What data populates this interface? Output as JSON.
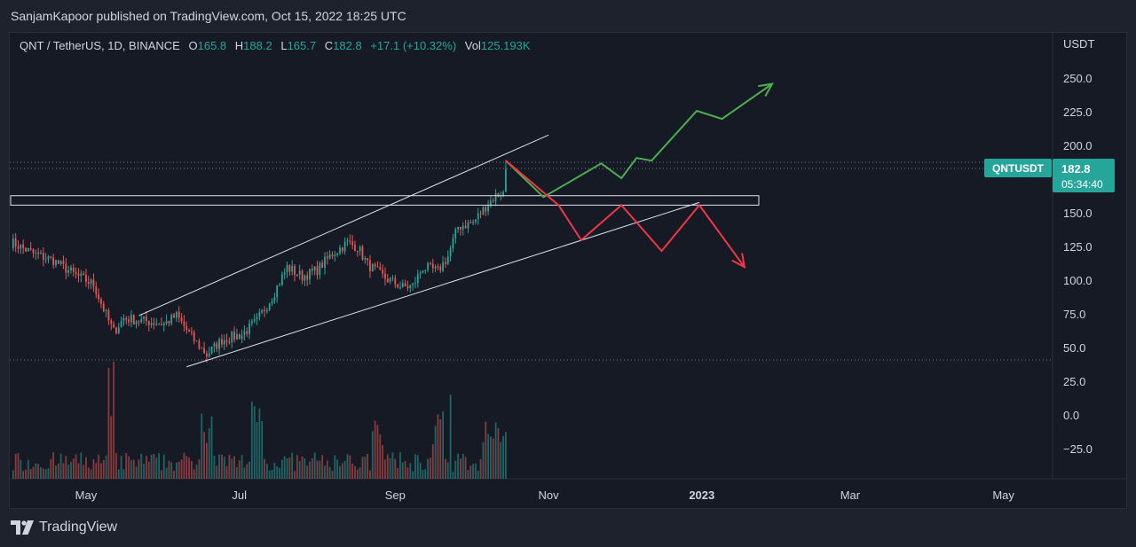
{
  "header": {
    "published": "SanjamKapoor published on TradingView.com, Oct 15, 2022 18:25 UTC"
  },
  "legend": {
    "symbol": "QNT / TetherUS, 1D, BINANCE",
    "open_label": "O",
    "open": "165.8",
    "high_label": "H",
    "high": "188.2",
    "low_label": "L",
    "low": "165.7",
    "close_label": "C",
    "close": "182.8",
    "change": "+17.1 (+10.32%)",
    "vol_label": "Vol",
    "vol": "125.193K"
  },
  "price_axis": {
    "unit": "USDT",
    "ticks": [
      "250.0",
      "225.0",
      "200.0",
      "150.0",
      "125.0",
      "100.0",
      "75.0",
      "50.0",
      "25.0",
      "0.0",
      "−25.0"
    ]
  },
  "price_tag": {
    "ticker": "QNTUSDT",
    "price": "182.8",
    "countdown": "05:34:40"
  },
  "time_axis": {
    "ticks": [
      "May",
      "Jul",
      "Sep",
      "Nov",
      "2023",
      "Mar",
      "May"
    ]
  },
  "footer": {
    "brand": "TradingView"
  },
  "colors": {
    "up": "#26a69a",
    "down": "#ef5350",
    "bull_path": "#4caf50",
    "bear_path": "#f23645",
    "trendline": "#e0e3eb",
    "background": "#161a25"
  },
  "chart_data": {
    "type": "candlestick",
    "symbol": "QNTUSDT",
    "interval": "1D",
    "ylim": [
      -40,
      265
    ],
    "last_price": 182.8,
    "price_series": [
      {
        "date": "2022-04-02",
        "close": 128
      },
      {
        "date": "2022-04-10",
        "close": 120
      },
      {
        "date": "2022-04-18",
        "close": 115
      },
      {
        "date": "2022-04-26",
        "close": 105
      },
      {
        "date": "2022-05-04",
        "close": 97
      },
      {
        "date": "2022-05-10",
        "close": 70
      },
      {
        "date": "2022-05-12",
        "close": 62
      },
      {
        "date": "2022-05-16",
        "close": 72
      },
      {
        "date": "2022-05-24",
        "close": 70
      },
      {
        "date": "2022-06-01",
        "close": 68
      },
      {
        "date": "2022-06-06",
        "close": 74
      },
      {
        "date": "2022-06-12",
        "close": 58
      },
      {
        "date": "2022-06-18",
        "close": 45
      },
      {
        "date": "2022-06-24",
        "close": 56
      },
      {
        "date": "2022-07-02",
        "close": 60
      },
      {
        "date": "2022-07-08",
        "close": 70
      },
      {
        "date": "2022-07-14",
        "close": 88
      },
      {
        "date": "2022-07-20",
        "close": 110
      },
      {
        "date": "2022-07-26",
        "close": 103
      },
      {
        "date": "2022-08-01",
        "close": 108
      },
      {
        "date": "2022-08-07",
        "close": 120
      },
      {
        "date": "2022-08-13",
        "close": 128
      },
      {
        "date": "2022-08-17",
        "close": 125
      },
      {
        "date": "2022-08-21",
        "close": 112
      },
      {
        "date": "2022-08-27",
        "close": 103
      },
      {
        "date": "2022-09-04",
        "close": 95
      },
      {
        "date": "2022-09-08",
        "close": 96
      },
      {
        "date": "2022-09-12",
        "close": 110
      },
      {
        "date": "2022-09-18",
        "close": 107
      },
      {
        "date": "2022-09-22",
        "close": 118
      },
      {
        "date": "2022-09-26",
        "close": 140
      },
      {
        "date": "2022-10-02",
        "close": 143
      },
      {
        "date": "2022-10-07",
        "close": 155
      },
      {
        "date": "2022-10-11",
        "close": 163
      },
      {
        "date": "2022-10-14",
        "close": 165.8
      },
      {
        "date": "2022-10-15",
        "close": 182.8
      }
    ],
    "volume_shape": "bars below price, spikes around May 10 and Oct 4",
    "horizontal_zone": [
      156,
      163
    ],
    "ascending_channel": {
      "upper": [
        {
          "date": "2022-05-22",
          "price": 74
        },
        {
          "date": "2022-11-01",
          "price": 208
        }
      ],
      "lower": [
        {
          "date": "2022-06-10",
          "price": 36
        },
        {
          "date": "2022-12-31",
          "price": 158
        }
      ]
    },
    "bullish_projection": [
      {
        "date": "2022-10-15",
        "price": 189
      },
      {
        "date": "2022-10-30",
        "price": 162
      },
      {
        "date": "2022-11-22",
        "price": 187
      },
      {
        "date": "2022-11-30",
        "price": 176
      },
      {
        "date": "2022-12-06",
        "price": 191
      },
      {
        "date": "2022-12-12",
        "price": 189
      },
      {
        "date": "2022-12-30",
        "price": 226
      },
      {
        "date": "2023-01-09",
        "price": 220
      },
      {
        "date": "2023-01-29",
        "price": 246
      }
    ],
    "bearish_projection": [
      {
        "date": "2022-10-15",
        "price": 189
      },
      {
        "date": "2022-11-05",
        "price": 156
      },
      {
        "date": "2022-11-14",
        "price": 130
      },
      {
        "date": "2022-11-30",
        "price": 156
      },
      {
        "date": "2022-12-16",
        "price": 122
      },
      {
        "date": "2022-12-31",
        "price": 156
      },
      {
        "date": "2023-01-18",
        "price": 110
      }
    ]
  }
}
